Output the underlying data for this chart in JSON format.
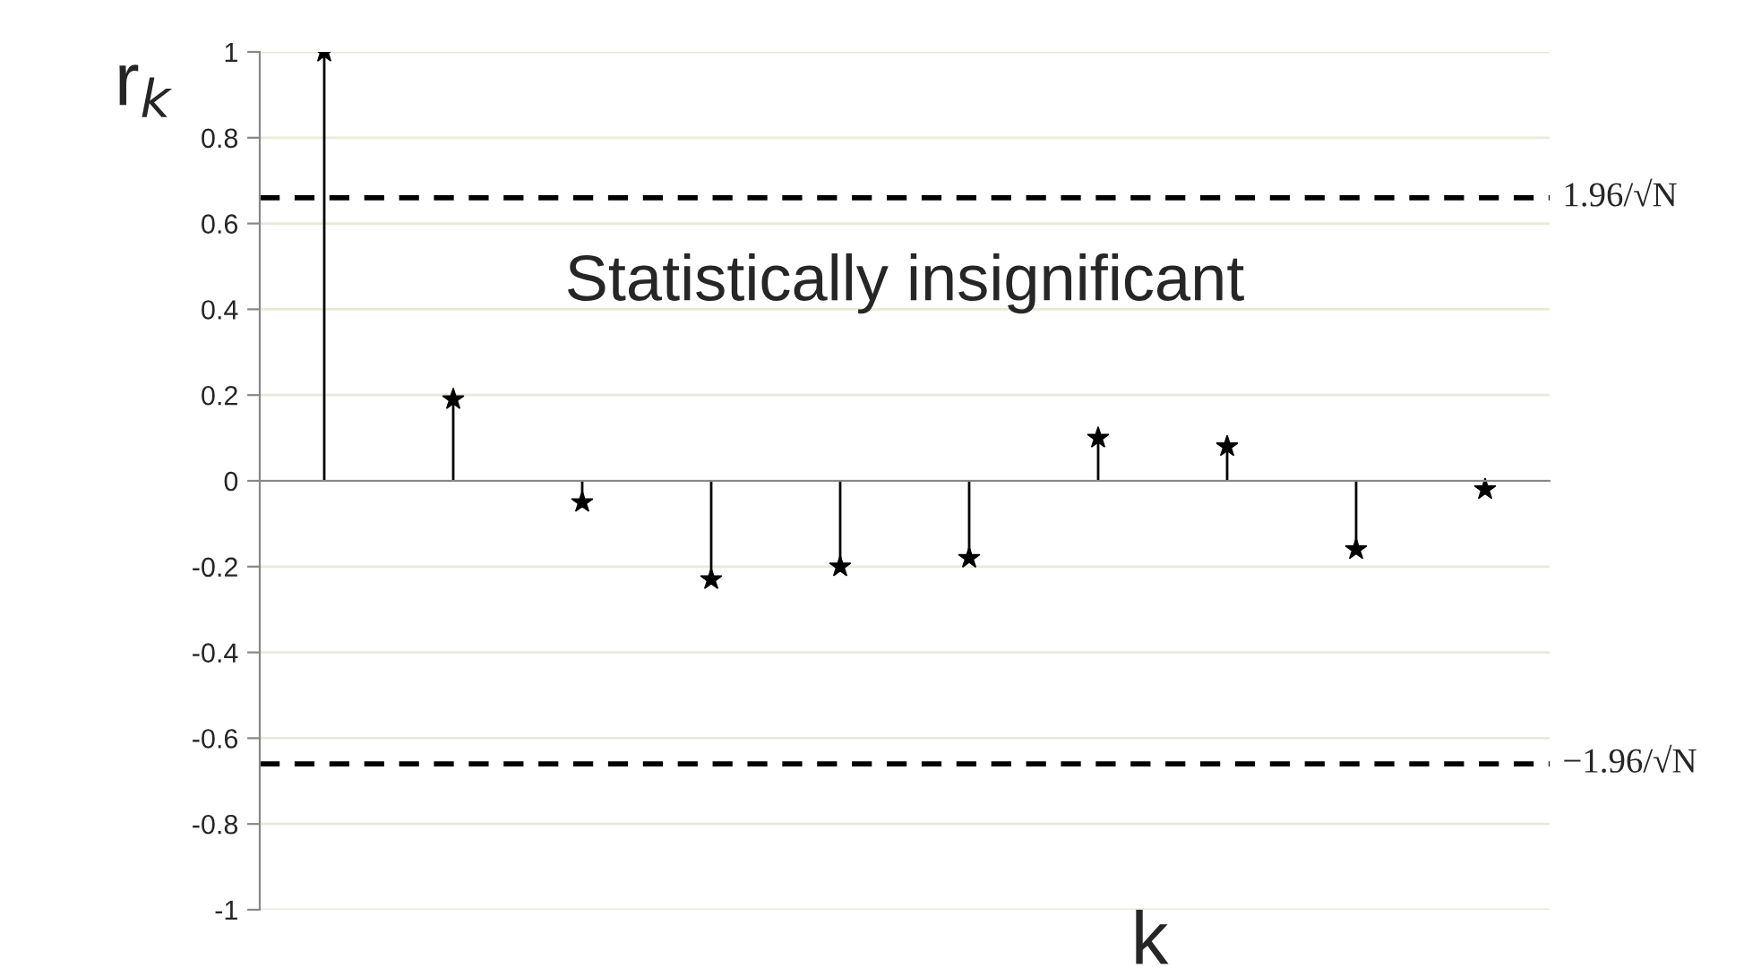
{
  "chart_data": {
    "type": "lollipop",
    "xlabel": "k",
    "ylabel": "r$_{k}$",
    "categories": [
      null,
      null,
      null,
      null,
      null,
      null,
      null,
      null,
      null,
      null
    ],
    "series": [
      {
        "color": "#000000",
        "values": [
          1,
          0.19,
          -0.05,
          -0.23,
          -0.2,
          -0.18,
          0.1,
          0.08,
          -0.16,
          -0.02
        ]
      }
    ],
    "ylim": [
      -1,
      1
    ],
    "yticks": [
      1,
      0.8,
      0.6,
      0.4,
      0.2,
      0,
      -0.2,
      -0.4,
      -0.6,
      -0.8,
      -1
    ],
    "ref_lines": [
      {
        "axis": "y",
        "value": 0.66,
        "label": "1.96/√N",
        "line_style": "dashed",
        "color": "#000000"
      },
      {
        "axis": "y",
        "value": -0.66,
        "label": "−1.96/√N",
        "line_style": "dashed",
        "color": "#000000"
      }
    ],
    "annotations": [
      "Statistically insignificant"
    ],
    "grid": "y",
    "marker": "star",
    "tick_labels": "y"
  }
}
